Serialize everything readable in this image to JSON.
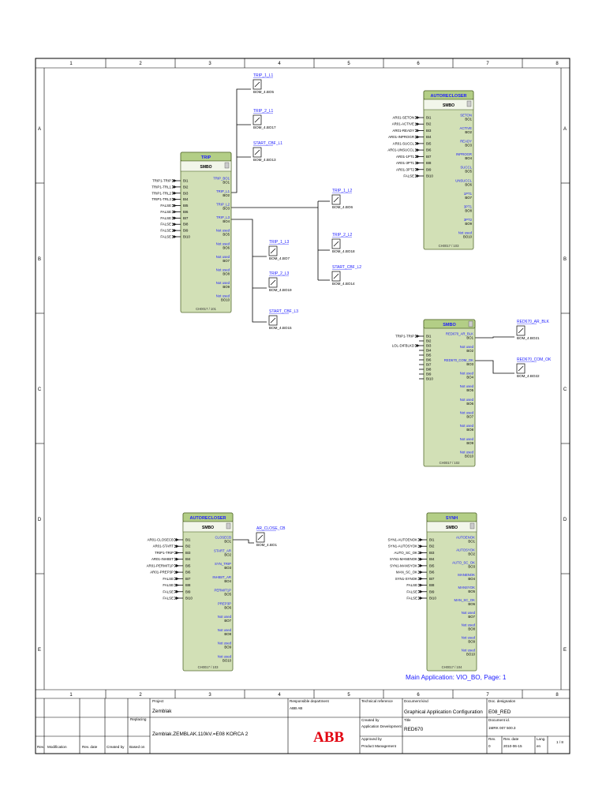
{
  "grid": {
    "columns": [
      "1",
      "2",
      "3",
      "4",
      "5",
      "6",
      "7",
      "8"
    ],
    "rows": [
      "A",
      "B",
      "C",
      "D",
      "E"
    ]
  },
  "trip_block": {
    "title": "TRIP",
    "type": "SMBO",
    "id": "CH0017 / 101",
    "inputs": [
      {
        "src": "TRIP1-TRIP",
        "pin": "BI1"
      },
      {
        "src": "TRIP1-TRL1",
        "pin": "BI2"
      },
      {
        "src": "TRIP1-TRL2",
        "pin": "BI3"
      },
      {
        "src": "TRIP1-TRL3",
        "pin": "BI4"
      },
      {
        "src": "FALSE",
        "pin": "BI5"
      },
      {
        "src": "FALSE",
        "pin": "BI6"
      },
      {
        "src": "FALSE",
        "pin": "BI7"
      },
      {
        "src": "FALSE",
        "pin": "BI8"
      },
      {
        "src": "FALSE",
        "pin": "BI9"
      },
      {
        "src": "FALSE",
        "pin": "BI10"
      }
    ],
    "outputs": [
      {
        "sig": "TRIP_BO1",
        "pin": "BO1"
      },
      {
        "sig": "TRIP_L1",
        "pin": "BO2"
      },
      {
        "sig": "TRIP_L2",
        "pin": "BO3"
      },
      {
        "sig": "TRIP_L3",
        "pin": "BO4"
      },
      {
        "sig": "Not used",
        "pin": "BO5"
      },
      {
        "sig": "Not used",
        "pin": "BO6"
      },
      {
        "sig": "Not used",
        "pin": "BO7"
      },
      {
        "sig": "Not used",
        "pin": "BO8"
      },
      {
        "sig": "Not used",
        "pin": "BO9"
      },
      {
        "sig": "Not used",
        "pin": "BO10"
      }
    ]
  },
  "ar_top_block": {
    "title": "AUTORECLOSER",
    "type": "SMBO",
    "id": "CH0017 / 103",
    "inputs": [
      {
        "src": "AR01-SETON",
        "pin": "BI1"
      },
      {
        "src": "AR01-ACTIVE",
        "pin": "BI2"
      },
      {
        "src": "AR01-READY",
        "pin": "BI3"
      },
      {
        "src": "AR01-INPROGR",
        "pin": "BI4"
      },
      {
        "src": "AR01-SUCCL",
        "pin": "BI5"
      },
      {
        "src": "AR01-UNSUCCL",
        "pin": "BI6"
      },
      {
        "src": "AR01-1PT1",
        "pin": "BI7"
      },
      {
        "src": "AR01-3PT1",
        "pin": "BI8"
      },
      {
        "src": "AR01-3PT2",
        "pin": "BI9"
      },
      {
        "src": "FALSE",
        "pin": "BI10"
      }
    ],
    "outputs": [
      {
        "sig": "SETON",
        "pin": "BO1"
      },
      {
        "sig": "ACTIVE",
        "pin": "BO2"
      },
      {
        "sig": "READY",
        "pin": "BO3"
      },
      {
        "sig": "INPROGR",
        "pin": "BO4"
      },
      {
        "sig": "SUCCL",
        "pin": "BO5"
      },
      {
        "sig": "UNSUCCL",
        "pin": "BO6"
      },
      {
        "sig": "1PT1",
        "pin": "BO7"
      },
      {
        "sig": "3PT1",
        "pin": "BO8"
      },
      {
        "sig": "3PT2",
        "pin": "BO9"
      },
      {
        "sig": "Not used",
        "pin": "BO10"
      }
    ]
  },
  "smbo_mid_block": {
    "title": "SMBO",
    "type": "",
    "id": "CH0017 / 102",
    "inputs": [
      {
        "src": "TRIP1-TRIP",
        "pin": "BI1"
      },
      {
        "src": "",
        "pin": "BI2"
      },
      {
        "src": "LOL-DIFBLKD",
        "pin": "BI3"
      },
      {
        "src": "",
        "pin": "BI4"
      },
      {
        "src": "",
        "pin": "BI5"
      },
      {
        "src": "",
        "pin": "BI6"
      },
      {
        "src": "",
        "pin": "BI7"
      },
      {
        "src": "",
        "pin": "BI8"
      },
      {
        "src": "",
        "pin": "BI9"
      },
      {
        "src": "",
        "pin": "BI10"
      }
    ],
    "outputs": [
      {
        "sig": "RED670_AR_BLK",
        "pin": "BO1"
      },
      {
        "sig": "Not used",
        "pin": "BO2"
      },
      {
        "sig": "RED670_COM_OK",
        "pin": "BO3"
      },
      {
        "sig": "Not used",
        "pin": "BO4"
      },
      {
        "sig": "Not used",
        "pin": "BO5"
      },
      {
        "sig": "Not used",
        "pin": "BO6"
      },
      {
        "sig": "Not used",
        "pin": "BO7"
      },
      {
        "sig": "Not used",
        "pin": "BO8"
      },
      {
        "sig": "Not used",
        "pin": "BO9"
      },
      {
        "sig": "Not used",
        "pin": "BO10"
      }
    ]
  },
  "ar_bottom_block": {
    "title": "AUTORECLOSER",
    "type": "SMBO",
    "id": "CH0017 / 103",
    "inputs": [
      {
        "src": "AR01-CLOSECB",
        "pin": "BI1"
      },
      {
        "src": "AR01-START",
        "pin": "BI2"
      },
      {
        "src": "TRIP1-TRIP",
        "pin": "BI3"
      },
      {
        "src": "AR01-INHIBIT",
        "pin": "BI4"
      },
      {
        "src": "AR01-PERMIT1P",
        "pin": "BI5"
      },
      {
        "src": "AR01-PREP3P",
        "pin": "BI6"
      },
      {
        "src": "FALSE",
        "pin": "BI7"
      },
      {
        "src": "FALSE",
        "pin": "BI8"
      },
      {
        "src": "FALSE",
        "pin": "BI9"
      },
      {
        "src": "FALSE",
        "pin": "BI10"
      }
    ],
    "outputs": [
      {
        "sig": "CLOSECB",
        "pin": "BO1"
      },
      {
        "sig": "START_AR",
        "pin": "BO2"
      },
      {
        "sig": "SYN_TRIP",
        "pin": "BO3"
      },
      {
        "sig": "INHIBIT_AR",
        "pin": "BO4"
      },
      {
        "sig": "PERMIT1P",
        "pin": "BO5"
      },
      {
        "sig": "PREP3P",
        "pin": "BO6"
      },
      {
        "sig": "Not used",
        "pin": "BO7"
      },
      {
        "sig": "Not used",
        "pin": "BO8"
      },
      {
        "sig": "Not used",
        "pin": "BO9"
      },
      {
        "sig": "Not used",
        "pin": "BO10"
      }
    ]
  },
  "synch_block": {
    "title": "SYNH",
    "type": "SMBO",
    "id": "CH0017 / 104",
    "inputs": [
      {
        "src": "SYN1-AUTOENOK",
        "pin": "BI1"
      },
      {
        "src": "SYN1-AUTOSYOK",
        "pin": "BI2"
      },
      {
        "src": "AUTO_SC_OK",
        "pin": "BI3"
      },
      {
        "src": "SYN1-MANENOK",
        "pin": "BI4"
      },
      {
        "src": "SYN1-MANSYOK",
        "pin": "BI5"
      },
      {
        "src": "MAN_SC_OK",
        "pin": "BI6"
      },
      {
        "src": "SYN1-SYNOK",
        "pin": "BI7"
      },
      {
        "src": "FALSE",
        "pin": "BI8"
      },
      {
        "src": "FALSE",
        "pin": "BI9"
      },
      {
        "src": "FALSE",
        "pin": "BI10"
      }
    ],
    "outputs": [
      {
        "sig": "AUTOENOK",
        "pin": "BO1"
      },
      {
        "sig": "AUTOSYOK",
        "pin": "BO2"
      },
      {
        "sig": "AUTO_SC_OK",
        "pin": "BO3"
      },
      {
        "sig": "MANENOK",
        "pin": "BO4"
      },
      {
        "sig": "MANSYOK",
        "pin": "BO5"
      },
      {
        "sig": "MAN_SC_OK",
        "pin": "BO6"
      },
      {
        "sig": "Not used",
        "pin": "BO7"
      },
      {
        "sig": "Not used",
        "pin": "BO8"
      },
      {
        "sig": "Not used",
        "pin": "BO9"
      },
      {
        "sig": "Not used",
        "pin": "BO10"
      }
    ]
  },
  "contacts": {
    "trip_1_l1": {
      "sig": "TRIP_1_L1",
      "bom": "BOM_4.BO5"
    },
    "trip_2_l1": {
      "sig": "TRIP_2_L1",
      "bom": "BOM_4.BO17"
    },
    "start_cbf_l1": {
      "sig": "START_CBF_L1",
      "bom": "BOM_4.BO13"
    },
    "trip_1_l2": {
      "sig": "TRIP_1_L2",
      "bom": "BOM_4.BO6"
    },
    "trip_2_l2": {
      "sig": "TRIP_2_L2",
      "bom": "BOM_4.BO18"
    },
    "start_cbf_l2": {
      "sig": "START_CBF_L2",
      "bom": "BOM_4.BO14"
    },
    "trip_1_l3": {
      "sig": "TRIP_1_L3",
      "bom": "BOM_4.BO7"
    },
    "trip_2_l3": {
      "sig": "TRIP_2_L3",
      "bom": "BOM_4.BO19"
    },
    "start_cbf_l3": {
      "sig": "START_CBF_L3",
      "bom": "BOM_4.BO15"
    },
    "red670_ar_blk": {
      "sig": "RED670_AR_BLK",
      "bom": "BOM_4.BO21"
    },
    "red670_com_ok": {
      "sig": "RED670_COM_OK",
      "bom": "BOM_4.BO22"
    },
    "ar_close_cb": {
      "sig": "AR_CLOSE_CB",
      "bom": "BOM_4.BO1"
    }
  },
  "main_application": "Main Application: VIO_BO, Page: 1",
  "title_block": {
    "project_label": "Project",
    "project": "Zemblak",
    "replacing_label": "Replacing",
    "subject": "Zemblak.ZEMBLAK.110kV.=E08 KORCA 2",
    "resp_dept_label": "Responsible department",
    "resp_dept": "ABB AB",
    "tech_ref_label": "Technical reference",
    "doc_kind_label": "Document kind",
    "doc_kind": "Graphical Application Configuration",
    "doc_designation_label": "Doc. designation",
    "doc_designation": "E08_RED",
    "created_by_label": "Created by",
    "created_by": "Application Development",
    "title_label": "Title",
    "title": "RED670",
    "document_id_label": "Document id.",
    "document_id": "1MRK 007 500.3",
    "approved_by_label": "Approved by",
    "approved_by": "Product Management",
    "rev_label": "Rev.",
    "rev": "0",
    "rev_date_label": "Rev. date",
    "rev_date": "2010-06-15",
    "lang_label": "Lang.",
    "lang": "en",
    "sheet": "1 / 8",
    "logo": "ABB",
    "col_rev": "Rev.",
    "col_mod": "Modification",
    "col_revdate": "Rev. date",
    "col_createdby": "Created by",
    "col_basedon": "Based on"
  }
}
